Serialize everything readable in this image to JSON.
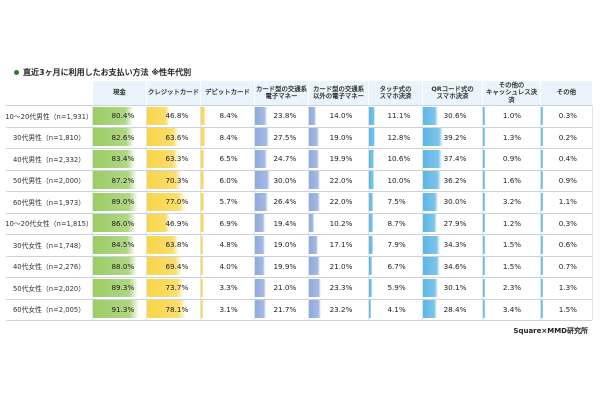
{
  "title": "直近3ヶ月に利用したお支払い方法 ※性年代別",
  "source": "Square×MMD研究所",
  "chart_data": {
    "type": "table",
    "title": "直近3ヶ月に利用したお支払い方法 ※性年代別",
    "columns": [
      "現金",
      "クレジットカード",
      "デビットカード",
      "カード型の交通系\n電子マネー",
      "カード型の交通系\n以外の電子マネー",
      "タッチ式の\nスマホ決済",
      "QRコード式の\nスマホ決済",
      "その他の\nキャッシュレス決済",
      "その他"
    ],
    "column_colors": [
      "#9ccc65",
      "#f9d548",
      "#f9d548",
      "#8fa9dc",
      "#8fa9dc",
      "#5cb6e4",
      "#5cb6e4",
      "#5cb6e4",
      "#5cb6e4"
    ],
    "rows": [
      "10～20代男性（n=1,931）",
      "30代男性（n=1,810）",
      "40代男性（n=2,332）",
      "50代男性（n=2,000）",
      "60代男性（n=1,973）",
      "10～20代女性（n=1,815）",
      "30代女性（n=1,748）",
      "40代女性（n=2,276）",
      "50代女性（n=2,020）",
      "60代女性（n=2,005）"
    ],
    "values": [
      [
        80.4,
        46.8,
        8.4,
        23.8,
        14.0,
        11.1,
        30.6,
        1.0,
        0.3
      ],
      [
        82.6,
        63.6,
        8.4,
        27.5,
        19.0,
        12.8,
        39.2,
        1.3,
        0.2
      ],
      [
        83.4,
        63.3,
        6.5,
        24.7,
        19.9,
        10.6,
        37.4,
        0.9,
        0.4
      ],
      [
        87.2,
        70.3,
        6.0,
        30.0,
        22.0,
        10.0,
        36.2,
        1.6,
        0.9
      ],
      [
        89.0,
        77.0,
        5.7,
        26.4,
        22.0,
        7.5,
        30.0,
        3.2,
        1.1
      ],
      [
        86.0,
        46.9,
        6.9,
        19.4,
        10.2,
        8.7,
        27.9,
        1.2,
        0.3
      ],
      [
        84.5,
        63.8,
        4.8,
        19.0,
        17.1,
        7.9,
        34.3,
        1.5,
        0.6
      ],
      [
        88.0,
        69.4,
        4.0,
        19.9,
        21.0,
        6.7,
        34.6,
        1.5,
        0.7
      ],
      [
        89.3,
        73.7,
        3.3,
        21.0,
        23.3,
        5.9,
        30.1,
        2.3,
        1.3
      ],
      [
        91.3,
        78.1,
        3.1,
        21.7,
        23.2,
        4.1,
        28.4,
        3.4,
        1.5
      ]
    ],
    "unit": "%",
    "scale_max": 100
  }
}
